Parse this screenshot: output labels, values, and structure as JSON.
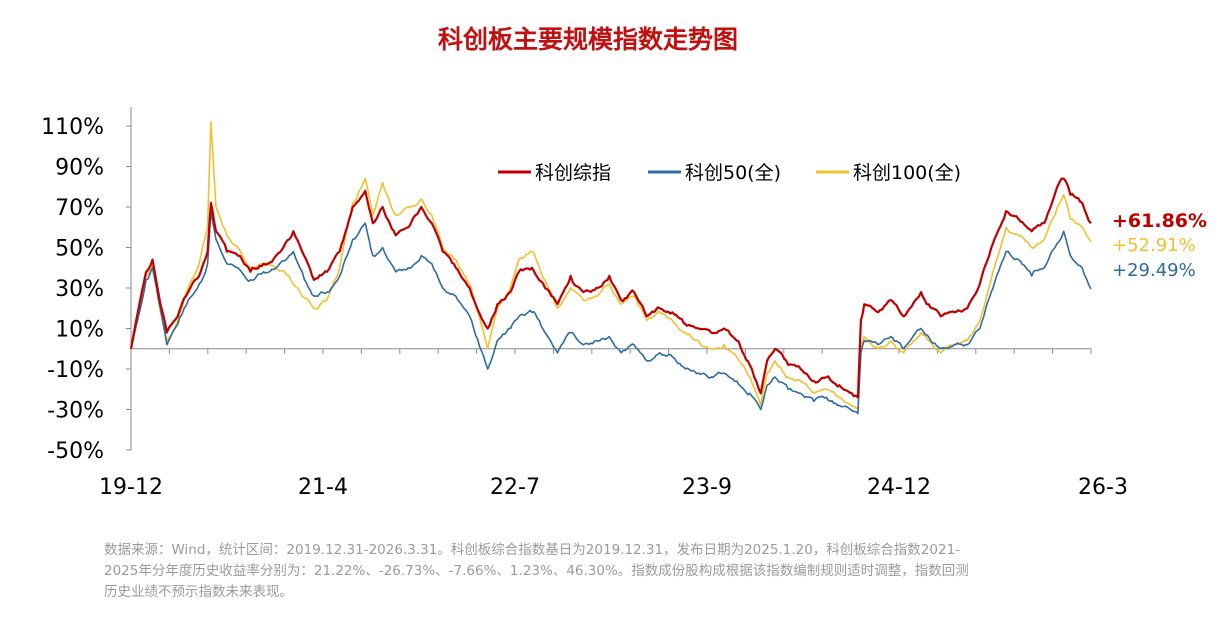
{
  "title": "科创板主要规模指数走势图",
  "chart_data": {
    "type": "line",
    "x_ticks": [
      "19-12",
      "21-4",
      "22-7",
      "23-9",
      "24-12",
      "26-3"
    ],
    "y_ticks": [
      "110%",
      "90%",
      "70%",
      "50%",
      "30%",
      "10%",
      "-10%",
      "-30%",
      "-50%"
    ],
    "y_tick_values": [
      110,
      90,
      70,
      50,
      30,
      10,
      -10,
      -30,
      -50
    ],
    "ylim": [
      -50,
      110
    ],
    "x_range": [
      "2019-12-31",
      "2026-03-31"
    ],
    "legend_position": "top-right",
    "series": [
      {
        "name": "科创综指",
        "color": "#c00000",
        "end_label": "+61.86%",
        "points": [
          [
            "2019-12-31",
            0
          ],
          [
            "2020-01-20",
            22
          ],
          [
            "2020-02-05",
            38
          ],
          [
            "2020-02-20",
            44
          ],
          [
            "2020-03-10",
            22
          ],
          [
            "2020-03-25",
            8
          ],
          [
            "2020-04-20",
            16
          ],
          [
            "2020-05-15",
            28
          ],
          [
            "2020-06-10",
            36
          ],
          [
            "2020-06-30",
            48
          ],
          [
            "2020-07-08",
            72
          ],
          [
            "2020-07-20",
            58
          ],
          [
            "2020-08-15",
            48
          ],
          [
            "2020-09-10",
            46
          ],
          [
            "2020-10-10",
            38
          ],
          [
            "2020-11-10",
            42
          ],
          [
            "2020-12-10",
            46
          ],
          [
            "2021-01-10",
            54
          ],
          [
            "2021-01-20",
            58
          ],
          [
            "2021-02-10",
            48
          ],
          [
            "2021-03-10",
            34
          ],
          [
            "2021-04-10",
            38
          ],
          [
            "2021-05-10",
            48
          ],
          [
            "2021-06-10",
            70
          ],
          [
            "2021-07-10",
            78
          ],
          [
            "2021-07-28",
            62
          ],
          [
            "2021-08-20",
            70
          ],
          [
            "2021-09-20",
            56
          ],
          [
            "2021-10-20",
            60
          ],
          [
            "2021-11-20",
            70
          ],
          [
            "2021-12-15",
            62
          ],
          [
            "2022-01-10",
            48
          ],
          [
            "2022-02-10",
            40
          ],
          [
            "2022-03-15",
            30
          ],
          [
            "2022-04-27",
            10
          ],
          [
            "2022-05-20",
            22
          ],
          [
            "2022-06-20",
            28
          ],
          [
            "2022-07-10",
            38
          ],
          [
            "2022-08-10",
            40
          ],
          [
            "2022-09-10",
            30
          ],
          [
            "2022-10-10",
            22
          ],
          [
            "2022-11-10",
            36
          ],
          [
            "2022-12-10",
            28
          ],
          [
            "2023-01-10",
            30
          ],
          [
            "2023-02-10",
            36
          ],
          [
            "2023-03-10",
            24
          ],
          [
            "2023-04-10",
            28
          ],
          [
            "2023-05-10",
            16
          ],
          [
            "2023-06-10",
            20
          ],
          [
            "2023-07-10",
            18
          ],
          [
            "2023-08-10",
            12
          ],
          [
            "2023-09-10",
            10
          ],
          [
            "2023-10-10",
            8
          ],
          [
            "2023-11-10",
            10
          ],
          [
            "2023-12-10",
            4
          ],
          [
            "2024-01-10",
            -8
          ],
          [
            "2024-02-05",
            -22
          ],
          [
            "2024-02-20",
            -6
          ],
          [
            "2024-03-10",
            0
          ],
          [
            "2024-04-10",
            -8
          ],
          [
            "2024-05-10",
            -10
          ],
          [
            "2024-06-10",
            -16
          ],
          [
            "2024-07-10",
            -14
          ],
          [
            "2024-08-10",
            -18
          ],
          [
            "2024-09-23",
            -24
          ],
          [
            "2024-09-30",
            14
          ],
          [
            "2024-10-08",
            22
          ],
          [
            "2024-11-10",
            18
          ],
          [
            "2024-12-10",
            24
          ],
          [
            "2025-01-10",
            16
          ],
          [
            "2025-02-20",
            28
          ],
          [
            "2025-03-10",
            22
          ],
          [
            "2025-04-08",
            16
          ],
          [
            "2025-05-10",
            18
          ],
          [
            "2025-06-10",
            20
          ],
          [
            "2025-07-10",
            32
          ],
          [
            "2025-08-10",
            52
          ],
          [
            "2025-09-10",
            68
          ],
          [
            "2025-10-10",
            64
          ],
          [
            "2025-11-10",
            58
          ],
          [
            "2025-12-10",
            62
          ],
          [
            "2026-01-10",
            80
          ],
          [
            "2026-01-25",
            84
          ],
          [
            "2026-02-10",
            76
          ],
          [
            "2026-03-10",
            72
          ],
          [
            "2026-03-31",
            62
          ]
        ]
      },
      {
        "name": "科创50(全)",
        "color": "#2e6ba0",
        "end_label": "+29.49%",
        "points": [
          [
            "2019-12-31",
            0
          ],
          [
            "2020-01-20",
            18
          ],
          [
            "2020-02-05",
            34
          ],
          [
            "2020-02-20",
            40
          ],
          [
            "2020-03-10",
            20
          ],
          [
            "2020-03-25",
            2
          ],
          [
            "2020-04-20",
            12
          ],
          [
            "2020-05-15",
            24
          ],
          [
            "2020-06-10",
            32
          ],
          [
            "2020-06-30",
            42
          ],
          [
            "2020-07-08",
            68
          ],
          [
            "2020-07-20",
            54
          ],
          [
            "2020-08-15",
            42
          ],
          [
            "2020-09-10",
            40
          ],
          [
            "2020-10-10",
            34
          ],
          [
            "2020-11-10",
            38
          ],
          [
            "2020-12-10",
            40
          ],
          [
            "2021-01-10",
            46
          ],
          [
            "2021-01-20",
            48
          ],
          [
            "2021-02-10",
            38
          ],
          [
            "2021-03-10",
            26
          ],
          [
            "2021-04-10",
            28
          ],
          [
            "2021-05-10",
            36
          ],
          [
            "2021-06-10",
            54
          ],
          [
            "2021-07-10",
            62
          ],
          [
            "2021-07-28",
            46
          ],
          [
            "2021-08-20",
            50
          ],
          [
            "2021-09-20",
            38
          ],
          [
            "2021-10-20",
            40
          ],
          [
            "2021-11-20",
            46
          ],
          [
            "2021-12-15",
            42
          ],
          [
            "2022-01-10",
            30
          ],
          [
            "2022-02-10",
            26
          ],
          [
            "2022-03-15",
            16
          ],
          [
            "2022-04-27",
            -10
          ],
          [
            "2022-05-20",
            4
          ],
          [
            "2022-06-20",
            10
          ],
          [
            "2022-07-10",
            16
          ],
          [
            "2022-08-10",
            18
          ],
          [
            "2022-09-10",
            8
          ],
          [
            "2022-10-10",
            -2
          ],
          [
            "2022-11-10",
            8
          ],
          [
            "2022-12-10",
            2
          ],
          [
            "2023-01-10",
            4
          ],
          [
            "2023-02-10",
            6
          ],
          [
            "2023-03-10",
            -2
          ],
          [
            "2023-04-10",
            2
          ],
          [
            "2023-05-10",
            -6
          ],
          [
            "2023-06-10",
            -2
          ],
          [
            "2023-07-10",
            -4
          ],
          [
            "2023-08-10",
            -10
          ],
          [
            "2023-09-10",
            -12
          ],
          [
            "2023-10-10",
            -14
          ],
          [
            "2023-11-10",
            -12
          ],
          [
            "2023-12-10",
            -16
          ],
          [
            "2024-01-10",
            -22
          ],
          [
            "2024-02-05",
            -30
          ],
          [
            "2024-02-20",
            -18
          ],
          [
            "2024-03-10",
            -14
          ],
          [
            "2024-04-10",
            -20
          ],
          [
            "2024-05-10",
            -22
          ],
          [
            "2024-06-10",
            -26
          ],
          [
            "2024-07-10",
            -24
          ],
          [
            "2024-08-10",
            -28
          ],
          [
            "2024-09-23",
            -32
          ],
          [
            "2024-09-30",
            -2
          ],
          [
            "2024-10-08",
            4
          ],
          [
            "2024-11-10",
            2
          ],
          [
            "2024-12-10",
            6
          ],
          [
            "2025-01-10",
            0
          ],
          [
            "2025-02-20",
            10
          ],
          [
            "2025-03-10",
            6
          ],
          [
            "2025-04-08",
            0
          ],
          [
            "2025-05-10",
            2
          ],
          [
            "2025-06-10",
            2
          ],
          [
            "2025-07-10",
            10
          ],
          [
            "2025-08-10",
            30
          ],
          [
            "2025-09-10",
            48
          ],
          [
            "2025-10-10",
            44
          ],
          [
            "2025-11-10",
            36
          ],
          [
            "2025-12-10",
            40
          ],
          [
            "2026-01-10",
            52
          ],
          [
            "2026-01-25",
            58
          ],
          [
            "2026-02-10",
            46
          ],
          [
            "2026-03-10",
            40
          ],
          [
            "2026-03-31",
            29.49
          ]
        ]
      },
      {
        "name": "科创100(全)",
        "color": "#f0c030",
        "end_label": "+52.91%",
        "points": [
          [
            "2019-12-31",
            0
          ],
          [
            "2020-01-20",
            20
          ],
          [
            "2020-02-05",
            36
          ],
          [
            "2020-02-20",
            42
          ],
          [
            "2020-03-10",
            18
          ],
          [
            "2020-03-25",
            4
          ],
          [
            "2020-04-20",
            14
          ],
          [
            "2020-05-15",
            30
          ],
          [
            "2020-06-10",
            42
          ],
          [
            "2020-06-30",
            60
          ],
          [
            "2020-07-08",
            112
          ],
          [
            "2020-07-20",
            70
          ],
          [
            "2020-08-15",
            56
          ],
          [
            "2020-09-10",
            50
          ],
          [
            "2020-10-10",
            40
          ],
          [
            "2020-11-10",
            42
          ],
          [
            "2020-12-10",
            40
          ],
          [
            "2021-01-10",
            36
          ],
          [
            "2021-01-20",
            32
          ],
          [
            "2021-02-10",
            26
          ],
          [
            "2021-03-10",
            20
          ],
          [
            "2021-04-10",
            24
          ],
          [
            "2021-05-10",
            40
          ],
          [
            "2021-06-10",
            72
          ],
          [
            "2021-07-10",
            84
          ],
          [
            "2021-07-28",
            66
          ],
          [
            "2021-08-20",
            82
          ],
          [
            "2021-09-20",
            66
          ],
          [
            "2021-10-20",
            70
          ],
          [
            "2021-11-20",
            74
          ],
          [
            "2021-12-15",
            66
          ],
          [
            "2022-01-10",
            50
          ],
          [
            "2022-02-10",
            44
          ],
          [
            "2022-03-15",
            32
          ],
          [
            "2022-04-27",
            0
          ],
          [
            "2022-05-20",
            20
          ],
          [
            "2022-06-20",
            30
          ],
          [
            "2022-07-10",
            44
          ],
          [
            "2022-08-10",
            48
          ],
          [
            "2022-09-10",
            34
          ],
          [
            "2022-10-10",
            20
          ],
          [
            "2022-11-10",
            30
          ],
          [
            "2022-12-10",
            24
          ],
          [
            "2023-01-10",
            26
          ],
          [
            "2023-02-10",
            32
          ],
          [
            "2023-03-10",
            22
          ],
          [
            "2023-04-10",
            26
          ],
          [
            "2023-05-10",
            14
          ],
          [
            "2023-06-10",
            18
          ],
          [
            "2023-07-10",
            14
          ],
          [
            "2023-08-10",
            8
          ],
          [
            "2023-09-10",
            4
          ],
          [
            "2023-10-10",
            0
          ],
          [
            "2023-11-10",
            2
          ],
          [
            "2023-12-10",
            -4
          ],
          [
            "2024-01-10",
            -14
          ],
          [
            "2024-02-05",
            -28
          ],
          [
            "2024-02-20",
            -12
          ],
          [
            "2024-03-10",
            -6
          ],
          [
            "2024-04-10",
            -14
          ],
          [
            "2024-05-10",
            -16
          ],
          [
            "2024-06-10",
            -22
          ],
          [
            "2024-07-10",
            -20
          ],
          [
            "2024-08-10",
            -24
          ],
          [
            "2024-09-23",
            -30
          ],
          [
            "2024-09-30",
            2
          ],
          [
            "2024-10-08",
            6
          ],
          [
            "2024-11-10",
            0
          ],
          [
            "2024-12-10",
            4
          ],
          [
            "2025-01-10",
            -2
          ],
          [
            "2025-02-20",
            8
          ],
          [
            "2025-03-10",
            4
          ],
          [
            "2025-04-08",
            -2
          ],
          [
            "2025-05-10",
            2
          ],
          [
            "2025-06-10",
            4
          ],
          [
            "2025-07-10",
            14
          ],
          [
            "2025-08-10",
            38
          ],
          [
            "2025-09-10",
            60
          ],
          [
            "2025-10-10",
            56
          ],
          [
            "2025-11-10",
            50
          ],
          [
            "2025-12-10",
            54
          ],
          [
            "2026-01-10",
            70
          ],
          [
            "2026-01-25",
            76
          ],
          [
            "2026-02-10",
            64
          ],
          [
            "2026-03-10",
            60
          ],
          [
            "2026-03-31",
            52.91
          ]
        ]
      }
    ]
  },
  "note_lines": [
    "数据来源：Wind，统计区间：2019.12.31-2026.3.31。科创板综合指数基日为2019.12.31，发布日期为2025.1.20，科创板综合指数2021-",
    "2025年分年度历史收益率分别为：21.22%、-26.73%、-7.66%、1.23%、46.30%。指数成份股构成根据该指数编制规则适时调整，指数回测",
    "历史业绩不预示指数未来表现。"
  ]
}
